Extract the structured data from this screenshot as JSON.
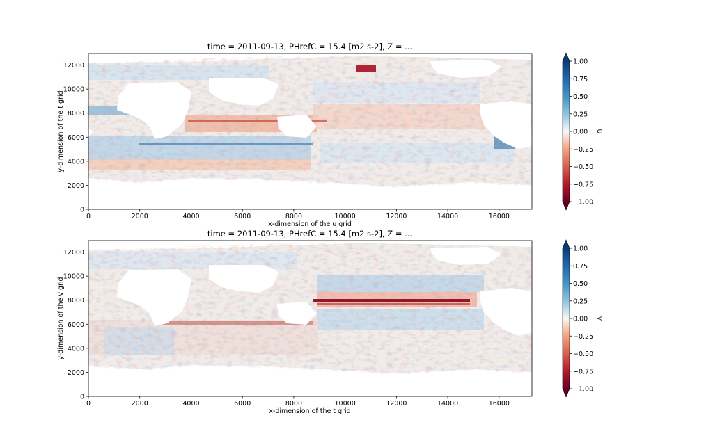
{
  "chart_data": [
    {
      "type": "heatmap",
      "title": "time = 2011-09-13, PHrefC = 15.4 [m2 s-2], Z = ...",
      "xlabel": "x-dimension of the u grid",
      "ylabel": "y-dimension of the t grid",
      "xlim": [
        0,
        17280
      ],
      "ylim": [
        0,
        12960
      ],
      "xticks": [
        0,
        2000,
        4000,
        6000,
        8000,
        10000,
        12000,
        14000,
        16000
      ],
      "yticks": [
        0,
        2000,
        4000,
        6000,
        8000,
        10000,
        12000
      ],
      "colorbar": {
        "label": "U",
        "range": [
          -1.0,
          1.0
        ],
        "ticks": [
          "1.00",
          "0.75",
          "0.50",
          "0.25",
          "0.00",
          "−0.25",
          "−0.50",
          "−0.75",
          "−1.00"
        ],
        "colormap": "RdBu",
        "extend": "both",
        "colors": {
          "high": "#08306b",
          "mid": "#f7f7f7",
          "low": "#67001f"
        }
      }
    },
    {
      "type": "heatmap",
      "title": "time = 2011-09-13, PHrefC = 15.4 [m2 s-2], Z = ...",
      "xlabel": "x-dimension of the t grid",
      "ylabel": "y-dimension of the v grid",
      "xlim": [
        0,
        17280
      ],
      "ylim": [
        0,
        12960
      ],
      "xticks": [
        0,
        2000,
        4000,
        6000,
        8000,
        10000,
        12000,
        14000,
        16000
      ],
      "yticks": [
        0,
        2000,
        4000,
        6000,
        8000,
        10000,
        12000
      ],
      "colorbar": {
        "label": "V",
        "range": [
          -1.0,
          1.0
        ],
        "ticks": [
          "1.00",
          "0.75",
          "0.50",
          "0.25",
          "0.00",
          "−0.25",
          "−0.50",
          "−0.75",
          "−1.00"
        ],
        "colormap": "RdBu",
        "extend": "both",
        "colors": {
          "high": "#08306b",
          "mid": "#f7f7f7",
          "low": "#67001f"
        }
      }
    }
  ]
}
